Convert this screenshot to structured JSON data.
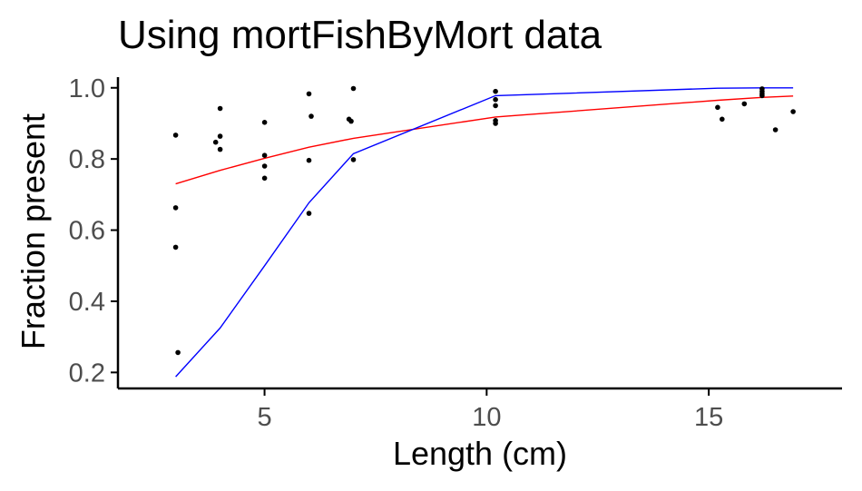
{
  "chart_data": {
    "type": "scatter",
    "title": "Using mortFishByMort data",
    "xlabel": "Length (cm)",
    "ylabel": "Fraction present",
    "xlim": [
      1.7,
      18.0
    ],
    "ylim": [
      0.155,
      1.03
    ],
    "x_ticks": [
      5,
      10,
      15
    ],
    "x_tick_labels": [
      "5",
      "10",
      "15"
    ],
    "y_ticks": [
      0.2,
      0.4,
      0.6,
      0.8,
      1.0
    ],
    "y_tick_labels": [
      "0.2",
      "0.4",
      "0.6",
      "0.8",
      "1.0"
    ],
    "grid": false,
    "legend": "none",
    "points": [
      {
        "x": 3.0,
        "y": 0.867
      },
      {
        "x": 3.0,
        "y": 0.663
      },
      {
        "x": 3.0,
        "y": 0.552
      },
      {
        "x": 3.05,
        "y": 0.256
      },
      {
        "x": 3.9,
        "y": 0.847
      },
      {
        "x": 4.0,
        "y": 0.942
      },
      {
        "x": 4.0,
        "y": 0.864
      },
      {
        "x": 4.0,
        "y": 0.827
      },
      {
        "x": 5.0,
        "y": 0.903
      },
      {
        "x": 5.0,
        "y": 0.81
      },
      {
        "x": 5.0,
        "y": 0.78
      },
      {
        "x": 5.0,
        "y": 0.746
      },
      {
        "x": 6.0,
        "y": 0.983
      },
      {
        "x": 6.05,
        "y": 0.92
      },
      {
        "x": 6.0,
        "y": 0.796
      },
      {
        "x": 6.0,
        "y": 0.647
      },
      {
        "x": 7.0,
        "y": 0.998
      },
      {
        "x": 6.9,
        "y": 0.912
      },
      {
        "x": 6.95,
        "y": 0.906
      },
      {
        "x": 7.0,
        "y": 0.798
      },
      {
        "x": 10.2,
        "y": 0.99
      },
      {
        "x": 10.2,
        "y": 0.967
      },
      {
        "x": 10.2,
        "y": 0.95
      },
      {
        "x": 10.2,
        "y": 0.908
      },
      {
        "x": 10.2,
        "y": 0.9
      },
      {
        "x": 15.2,
        "y": 0.945
      },
      {
        "x": 15.3,
        "y": 0.912
      },
      {
        "x": 15.8,
        "y": 0.955
      },
      {
        "x": 16.2,
        "y": 0.997
      },
      {
        "x": 16.2,
        "y": 0.99
      },
      {
        "x": 16.2,
        "y": 0.983
      },
      {
        "x": 16.2,
        "y": 0.978
      },
      {
        "x": 16.5,
        "y": 0.882
      },
      {
        "x": 16.9,
        "y": 0.933
      }
    ],
    "series": [
      {
        "color": "#ff0000",
        "x": [
          3.0,
          4.0,
          5.0,
          6.0,
          7.0,
          10.2,
          15.2,
          16.2,
          16.9
        ],
        "y": [
          0.73,
          0.768,
          0.802,
          0.833,
          0.858,
          0.918,
          0.965,
          0.973,
          0.977
        ]
      },
      {
        "color": "#0000ff",
        "x": [
          3.0,
          4.0,
          5.0,
          6.0,
          7.0,
          10.2,
          15.2,
          16.2,
          16.9
        ],
        "y": [
          0.188,
          0.325,
          0.5,
          0.677,
          0.815,
          0.978,
          0.999,
          1.0,
          1.0
        ]
      }
    ]
  }
}
